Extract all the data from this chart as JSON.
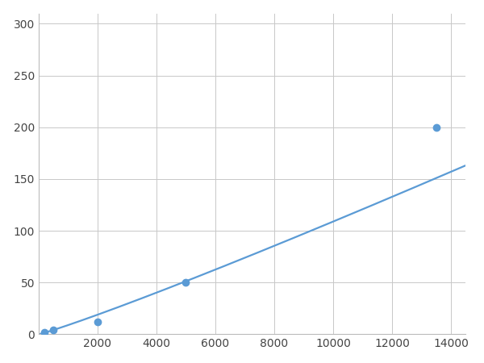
{
  "x_data": [
    200,
    500,
    2000,
    5000,
    13500
  ],
  "y_data": [
    2,
    4,
    12,
    50,
    200
  ],
  "line_color": "#5b9bd5",
  "marker_color": "#5b9bd5",
  "marker_size": 6,
  "line_width": 1.6,
  "xlim": [
    0,
    14500
  ],
  "ylim": [
    0,
    310
  ],
  "xticks": [
    2000,
    4000,
    6000,
    8000,
    10000,
    12000,
    14000
  ],
  "yticks": [
    0,
    50,
    100,
    150,
    200,
    250,
    300
  ],
  "grid_color": "#c8c8c8",
  "background_color": "#ffffff",
  "tick_label_fontsize": 10
}
